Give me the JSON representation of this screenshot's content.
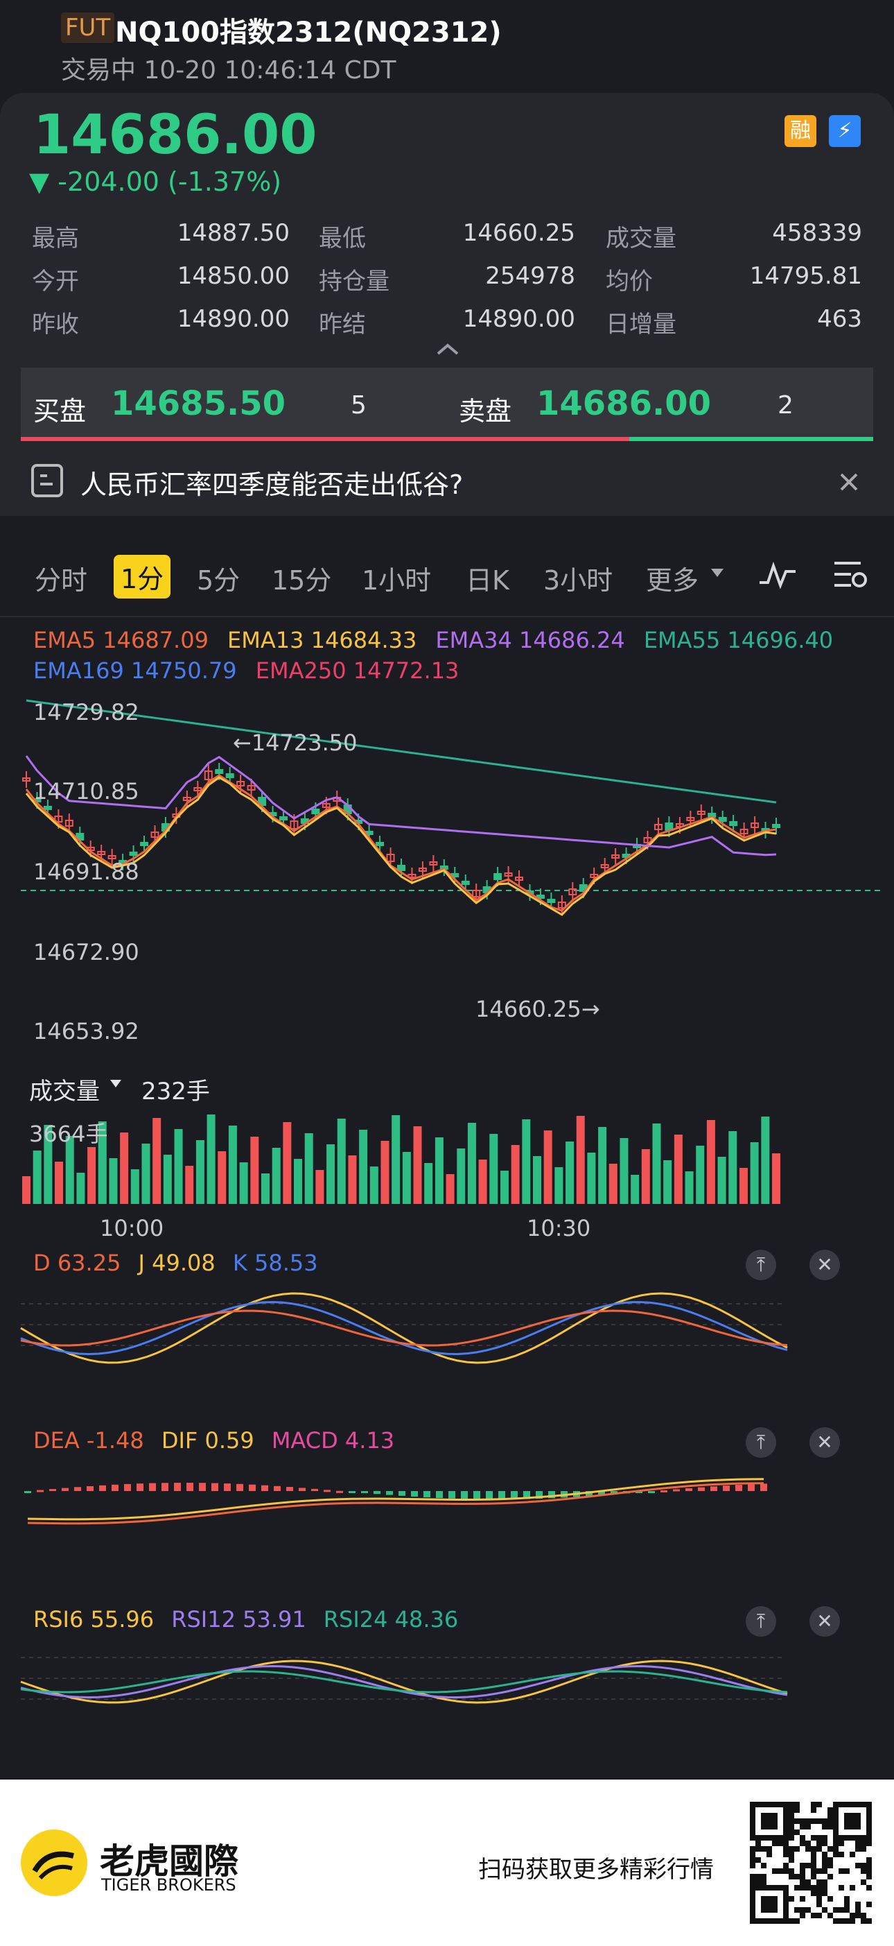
{
  "header": {
    "badge": "FUT",
    "title": "NQ100指数2312(NQ2312)",
    "status": "交易中 10-20 10:46:14 CDT"
  },
  "quote": {
    "price": "14686.00",
    "change": "▼ -204.00 (-1.37%)",
    "badge_margin": "融",
    "badge_flash": "⚡"
  },
  "stats": [
    {
      "label": "最高",
      "value": "14887.50"
    },
    {
      "label": "最低",
      "value": "14660.25"
    },
    {
      "label": "成交量",
      "value": "458339"
    },
    {
      "label": "今开",
      "value": "14850.00"
    },
    {
      "label": "持仓量",
      "value": "254978"
    },
    {
      "label": "均价",
      "value": "14795.81"
    },
    {
      "label": "昨收",
      "value": "14890.00"
    },
    {
      "label": "昨结",
      "value": "14890.00"
    },
    {
      "label": "日增量",
      "value": "463"
    }
  ],
  "book": {
    "bid_label": "买盘",
    "bid_price": "14685.50",
    "bid_qty": "5",
    "ask_label": "卖盘",
    "ask_price": "14686.00",
    "ask_qty": "2"
  },
  "news": {
    "title": "人民币汇率四季度能否走出低谷?"
  },
  "tabs": [
    "分时",
    "1分",
    "5分",
    "15分",
    "1小时",
    "日K",
    "3小时",
    "更多"
  ],
  "ema": {
    "row1": [
      {
        "text": "EMA5 14687.09",
        "color": "#f0663c"
      },
      {
        "text": "EMA13 14684.33",
        "color": "#f6c342"
      },
      {
        "text": "EMA34 14686.24",
        "color": "#b26ef0"
      },
      {
        "text": "EMA55 14696.40",
        "color": "#29b38f"
      }
    ],
    "row2": [
      {
        "text": "EMA169 14750.79",
        "color": "#4a7df0"
      },
      {
        "text": "EMA250 14772.13",
        "color": "#ef3e6a"
      }
    ]
  },
  "price_axis": [
    "14729.82",
    "14710.85",
    "14691.88",
    "14672.90",
    "14653.92"
  ],
  "annotations": {
    "high": "←14723.50",
    "low": "14660.25→"
  },
  "volume": {
    "label": "成交量",
    "unit_value": "232手",
    "max_label": "3664手"
  },
  "time_axis": [
    "10:00",
    "10:30"
  ],
  "kdj": {
    "d": "D 63.25",
    "j": "J 49.08",
    "k": "K 58.53"
  },
  "macd": {
    "dea": "DEA -1.48",
    "dif": "DIF 0.59",
    "macd": "MACD 4.13"
  },
  "rsi": {
    "r6": "RSI6 55.96",
    "r12": "RSI12 53.91",
    "r24": "RSI24 48.36"
  },
  "footer": {
    "brand_cn": "老虎國際",
    "brand_en": "TIGER BROKERS",
    "cta": "扫码获取更多精彩行情"
  },
  "colors": {
    "up": "#f05454",
    "down": "#2ebd85",
    "accent": "#f8d21c"
  }
}
